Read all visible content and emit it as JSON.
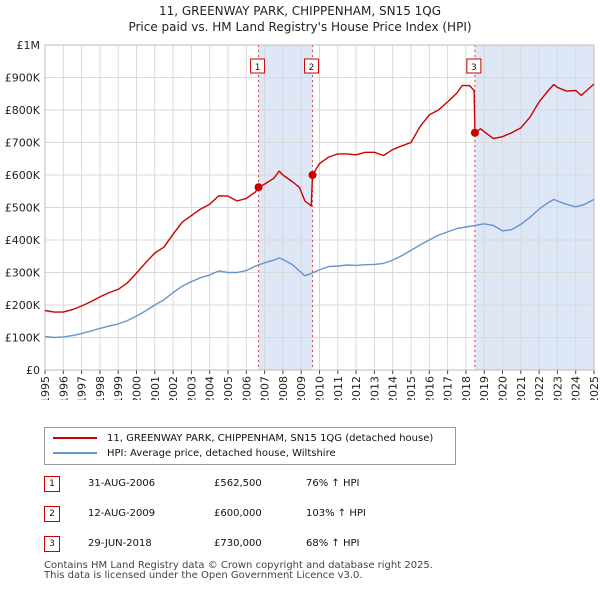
{
  "title_line1": "11, GREENWAY PARK, CHIPPENHAM, SN15 1QG",
  "title_line2": "Price paid vs. HM Land Registry's House Price Index (HPI)",
  "colors": {
    "property": "#cc0000",
    "hpi": "#6495cd",
    "shade": "#dde7f5",
    "marker": "#cc0000",
    "grid": "#d9d9d9"
  },
  "legend": {
    "property_label": "11, GREENWAY PARK, CHIPPENHAM, SN15 1QG (detached house)",
    "hpi_label": "HPI: Average price, detached house, Wiltshire"
  },
  "sales": [
    {
      "num": "1",
      "date": "31-AUG-2006",
      "price": "£562,500",
      "hpi": "76% ↑ HPI"
    },
    {
      "num": "2",
      "date": "12-AUG-2009",
      "price": "£600,000",
      "hpi": "103% ↑ HPI"
    },
    {
      "num": "3",
      "date": "29-JUN-2018",
      "price": "£730,000",
      "hpi": "68% ↑ HPI"
    }
  ],
  "footer_line1": "Contains HM Land Registry data © Crown copyright and database right 2025.",
  "footer_line2": "This data is licensed under the Open Government Licence v3.0.",
  "chart_data": {
    "type": "line",
    "title": "11, GREENWAY PARK, CHIPPENHAM, SN15 1QG — Price paid vs. HM Land Registry's House Price Index (HPI)",
    "xlabel": "",
    "ylabel": "",
    "xlim": [
      1995,
      2025
    ],
    "ylim": [
      0,
      1000000
    ],
    "y_ticks": [
      0,
      100000,
      200000,
      300000,
      400000,
      500000,
      600000,
      700000,
      800000,
      900000,
      1000000
    ],
    "y_tick_labels": [
      "£0",
      "£100K",
      "£200K",
      "£300K",
      "£400K",
      "£500K",
      "£600K",
      "£700K",
      "£800K",
      "£900K",
      "£1M"
    ],
    "x_ticks": [
      1995,
      1996,
      1997,
      1998,
      1999,
      2000,
      2001,
      2002,
      2003,
      2004,
      2005,
      2006,
      2007,
      2008,
      2009,
      2010,
      2011,
      2012,
      2013,
      2014,
      2015,
      2016,
      2017,
      2018,
      2019,
      2020,
      2021,
      2022,
      2023,
      2024,
      2025
    ],
    "x_tick_labels": [
      "1995",
      "1996",
      "1997",
      "1998",
      "1999",
      "2000",
      "2001",
      "2002",
      "2003",
      "2004",
      "2005",
      "2006",
      "2007",
      "2008",
      "2009",
      "2010",
      "2011",
      "2012",
      "2013",
      "2014",
      "2015",
      "2016",
      "2017",
      "2018",
      "2019",
      "2020",
      "2021",
      "2022",
      "2023",
      "2024",
      "2025"
    ],
    "grid": true,
    "shaded_ranges": [
      [
        2006.67,
        2009.62
      ],
      [
        2018.49,
        2025.0
      ]
    ],
    "sale_markers": [
      {
        "label": "1",
        "x": 2006.67,
        "y": 562500
      },
      {
        "label": "2",
        "x": 2009.62,
        "y": 600000
      },
      {
        "label": "3",
        "x": 2018.49,
        "y": 730000
      }
    ],
    "series": [
      {
        "name": "11, GREENWAY PARK, CHIPPENHAM, SN15 1QG (detached house)",
        "x": [
          1995.0,
          1995.5,
          1996.0,
          1996.5,
          1997.0,
          1997.5,
          1998.0,
          1998.5,
          1999.0,
          1999.5,
          2000.0,
          2000.5,
          2001.0,
          2001.5,
          2002.0,
          2002.5,
          2003.0,
          2003.5,
          2004.0,
          2004.5,
          2005.0,
          2005.5,
          2006.0,
          2006.5,
          2006.67,
          2007.0,
          2007.5,
          2007.8,
          2008.0,
          2008.5,
          2008.9,
          2009.2,
          2009.55,
          2009.62,
          2010.0,
          2010.5,
          2011.0,
          2011.5,
          2012.0,
          2012.5,
          2013.0,
          2013.5,
          2014.0,
          2014.5,
          2015.0,
          2015.5,
          2016.0,
          2016.5,
          2017.0,
          2017.5,
          2017.8,
          2018.2,
          2018.45,
          2018.49,
          2018.8,
          2019.2,
          2019.5,
          2020.0,
          2020.5,
          2021.0,
          2021.5,
          2022.0,
          2022.5,
          2022.8,
          2023.0,
          2023.5,
          2024.0,
          2024.3,
          2024.6,
          2025.0
        ],
        "y": [
          183000,
          178000,
          178000,
          186000,
          197000,
          210000,
          225000,
          238000,
          248000,
          268000,
          298000,
          330000,
          360000,
          378000,
          418000,
          455000,
          475000,
          495000,
          510000,
          536000,
          535000,
          520000,
          528000,
          548000,
          562500,
          572000,
          590000,
          612000,
          600000,
          580000,
          562000,
          520000,
          505000,
          600000,
          635000,
          655000,
          665000,
          665000,
          662000,
          670000,
          670000,
          660000,
          678000,
          690000,
          700000,
          750000,
          785000,
          800000,
          825000,
          852000,
          875000,
          875000,
          860000,
          730000,
          742000,
          725000,
          712000,
          718000,
          730000,
          745000,
          778000,
          825000,
          860000,
          878000,
          870000,
          858000,
          860000,
          845000,
          860000,
          880000
        ]
      },
      {
        "name": "HPI: Average price, detached house, Wiltshire",
        "x": [
          1995.0,
          1995.5,
          1996.0,
          1996.5,
          1997.0,
          1997.5,
          1998.0,
          1998.5,
          1999.0,
          1999.5,
          2000.0,
          2000.5,
          2001.0,
          2001.5,
          2002.0,
          2002.5,
          2003.0,
          2003.5,
          2004.0,
          2004.5,
          2005.0,
          2005.5,
          2006.0,
          2006.5,
          2007.0,
          2007.5,
          2007.8,
          2008.0,
          2008.5,
          2008.9,
          2009.2,
          2009.5,
          2010.0,
          2010.5,
          2011.0,
          2011.5,
          2012.0,
          2012.5,
          2013.0,
          2013.5,
          2014.0,
          2014.5,
          2015.0,
          2015.5,
          2016.0,
          2016.5,
          2017.0,
          2017.5,
          2018.0,
          2018.5,
          2019.0,
          2019.5,
          2020.0,
          2020.5,
          2021.0,
          2021.5,
          2022.0,
          2022.5,
          2022.8,
          2023.0,
          2023.5,
          2024.0,
          2024.5,
          2025.0
        ],
        "y": [
          103000,
          100000,
          102000,
          106000,
          112000,
          120000,
          128000,
          135000,
          142000,
          152000,
          166000,
          182000,
          200000,
          216000,
          238000,
          258000,
          272000,
          284000,
          292000,
          305000,
          300000,
          300000,
          306000,
          320000,
          330000,
          338000,
          345000,
          340000,
          325000,
          305000,
          290000,
          296000,
          308000,
          318000,
          320000,
          323000,
          322000,
          324000,
          325000,
          328000,
          338000,
          352000,
          368000,
          385000,
          400000,
          415000,
          425000,
          435000,
          440000,
          445000,
          450000,
          445000,
          428000,
          432000,
          448000,
          470000,
          495000,
          515000,
          525000,
          520000,
          510000,
          502000,
          510000,
          525000
        ]
      }
    ]
  }
}
